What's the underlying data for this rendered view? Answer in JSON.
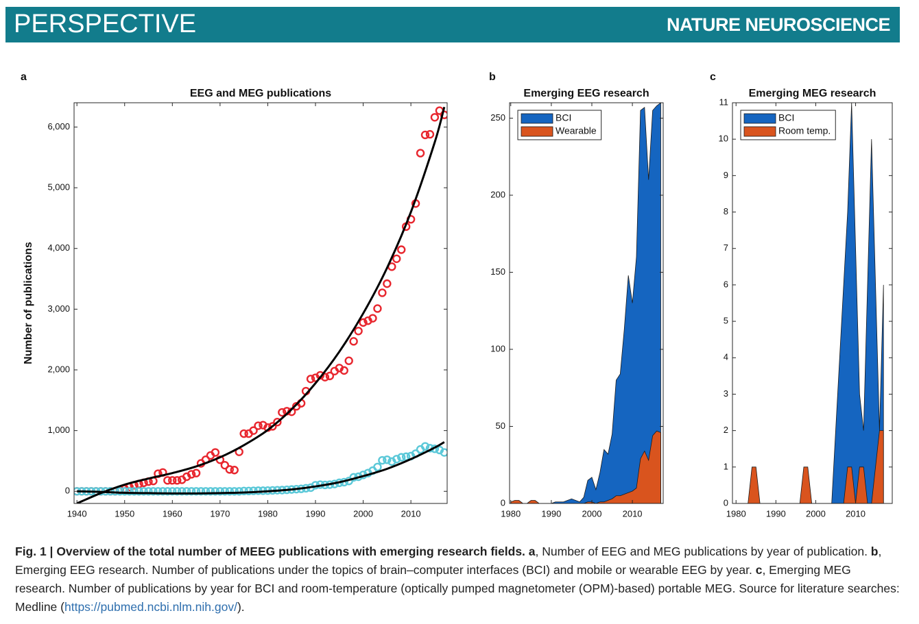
{
  "header": {
    "section": "PERSPECTIVE",
    "journal": "NATURE NEUROSCIENCE",
    "color": "#127c8c"
  },
  "chart_data": [
    {
      "type": "scatter",
      "panel": "a",
      "title": "EEG and MEG publications",
      "ylabel": "Number of publications",
      "x": [
        1940,
        1941,
        1942,
        1943,
        1944,
        1945,
        1946,
        1947,
        1948,
        1949,
        1950,
        1951,
        1952,
        1953,
        1954,
        1955,
        1956,
        1957,
        1958,
        1959,
        1960,
        1961,
        1962,
        1963,
        1964,
        1965,
        1966,
        1967,
        1968,
        1969,
        1970,
        1971,
        1972,
        1973,
        1974,
        1975,
        1976,
        1977,
        1978,
        1979,
        1980,
        1981,
        1982,
        1983,
        1984,
        1985,
        1986,
        1987,
        1988,
        1989,
        1990,
        1991,
        1992,
        1993,
        1994,
        1995,
        1996,
        1997,
        1998,
        1999,
        2000,
        2001,
        2002,
        2003,
        2004,
        2005,
        2006,
        2007,
        2008,
        2009,
        2010,
        2011,
        2012,
        2013,
        2014,
        2015,
        2016,
        2017
      ],
      "series": [
        {
          "color": "#e8262e",
          "values": [
            0,
            0,
            0,
            0,
            0,
            0,
            0,
            0,
            0,
            20,
            40,
            70,
            100,
            120,
            140,
            160,
            170,
            290,
            310,
            180,
            180,
            180,
            190,
            240,
            280,
            300,
            460,
            520,
            590,
            640,
            520,
            430,
            360,
            350,
            650,
            950,
            950,
            1000,
            1080,
            1090,
            1050,
            1070,
            1140,
            1300,
            1320,
            1310,
            1400,
            1450,
            1650,
            1850,
            1870,
            1910,
            1880,
            1900,
            1980,
            2030,
            1990,
            2150,
            2470,
            2640,
            2780,
            2810,
            2850,
            3010,
            3270,
            3420,
            3700,
            3830,
            3980,
            4360,
            4480,
            4740,
            5570,
            5870,
            5880,
            6160,
            6270,
            6200
          ]
        },
        {
          "color": "#5bc8d8",
          "values": [
            0,
            0,
            0,
            0,
            0,
            0,
            0,
            0,
            0,
            0,
            0,
            0,
            0,
            0,
            0,
            0,
            0,
            0,
            0,
            0,
            0,
            0,
            0,
            0,
            0,
            0,
            0,
            0,
            0,
            0,
            0,
            0,
            0,
            0,
            0,
            5,
            5,
            8,
            10,
            10,
            12,
            15,
            18,
            20,
            25,
            30,
            35,
            40,
            50,
            60,
            100,
            110,
            105,
            110,
            120,
            140,
            150,
            170,
            230,
            240,
            270,
            300,
            340,
            400,
            510,
            520,
            490,
            530,
            560,
            570,
            580,
            620,
            690,
            740,
            710,
            700,
            680,
            640
          ]
        }
      ],
      "fits": [
        {
          "color": "#000000",
          "x": [
            1940,
            1945,
            1950,
            1955,
            1960,
            1965,
            1970,
            1975,
            1980,
            1985,
            1990,
            1995,
            2000,
            2005,
            2010,
            2015,
            2017
          ],
          "values": [
            -200,
            -30,
            110,
            210,
            300,
            410,
            560,
            760,
            1010,
            1350,
            1780,
            2300,
            2930,
            3680,
            4600,
            5750,
            6330
          ]
        },
        {
          "color": "#000000",
          "x": [
            1940,
            1945,
            1950,
            1955,
            1960,
            1965,
            1970,
            1975,
            1980,
            1985,
            1990,
            1995,
            2000,
            2005,
            2010,
            2015,
            2017
          ],
          "values": [
            0,
            -10,
            -25,
            -30,
            -35,
            -35,
            -30,
            -20,
            0,
            30,
            80,
            150,
            250,
            370,
            530,
            720,
            810
          ]
        }
      ],
      "xlim": [
        1939.4,
        2017.6
      ],
      "xticks": [
        1940,
        1950,
        1960,
        1970,
        1980,
        1990,
        2000,
        2010
      ],
      "ylim": [
        -200,
        6400
      ],
      "yticks": [
        0,
        {
          "value": 1000,
          "label": "1,000"
        },
        {
          "value": 2000,
          "label": "2,000"
        },
        {
          "value": 3000,
          "label": "3,000"
        },
        {
          "value": 4000,
          "label": "4,000"
        },
        {
          "value": 5000,
          "label": "5,000"
        },
        {
          "value": 6000,
          "label": "6,000"
        }
      ],
      "grid": false
    },
    {
      "type": "area",
      "panel": "b",
      "title": "Emerging EEG research",
      "x": [
        1980,
        1981,
        1982,
        1983,
        1984,
        1985,
        1986,
        1987,
        1988,
        1989,
        1990,
        1991,
        1992,
        1993,
        1994,
        1995,
        1996,
        1997,
        1998,
        1999,
        2000,
        2001,
        2002,
        2003,
        2004,
        2005,
        2006,
        2007,
        2008,
        2009,
        2010,
        2011,
        2012,
        2013,
        2014,
        2015,
        2016,
        2017
      ],
      "series": [
        {
          "name": "BCI",
          "color": "#1565c0",
          "values": [
            0,
            0,
            0,
            0,
            0,
            0,
            0,
            0,
            0,
            0,
            0,
            1,
            1,
            1,
            2,
            3,
            2,
            1,
            4,
            15,
            17,
            9,
            20,
            35,
            32,
            45,
            80,
            84,
            113,
            148,
            130,
            160,
            255,
            257,
            210,
            255,
            258,
            260
          ]
        },
        {
          "name": "Wearable",
          "color": "#d9541e",
          "values": [
            1,
            2,
            2,
            0,
            0,
            2,
            2,
            0,
            0,
            0,
            0,
            0,
            0,
            0,
            0,
            0,
            0,
            0,
            0,
            1,
            1,
            0,
            1,
            1,
            2,
            3,
            5,
            5,
            6,
            7,
            8,
            10,
            29,
            34,
            28,
            44,
            47,
            46
          ]
        }
      ],
      "legend": "upper left",
      "xlim": [
        1979.7,
        2017.6
      ],
      "xticks": [
        1980,
        1990,
        2000,
        2010
      ],
      "ylim": [
        0,
        260
      ],
      "yticks": [
        0,
        50,
        100,
        150,
        200,
        250
      ],
      "grid": false
    },
    {
      "type": "area",
      "panel": "c",
      "title": "Emerging MEG research",
      "x": [
        1980,
        1981,
        1982,
        1983,
        1984,
        1985,
        1986,
        1987,
        1988,
        1989,
        1990,
        1991,
        1992,
        1993,
        1994,
        1995,
        1996,
        1997,
        1998,
        1999,
        2000,
        2001,
        2002,
        2003,
        2004,
        2005,
        2006,
        2007,
        2008,
        2009,
        2010,
        2011,
        2012,
        2013,
        2014,
        2015,
        2016,
        2017
      ],
      "series": [
        {
          "name": "BCI",
          "color": "#1565c0",
          "values": [
            0,
            0,
            0,
            0,
            0,
            0,
            0,
            0,
            0,
            0,
            0,
            0,
            0,
            0,
            0,
            0,
            0,
            0,
            0,
            0,
            0,
            0,
            0,
            0,
            0,
            2,
            4,
            6,
            8,
            11,
            7,
            3,
            2,
            6,
            10,
            6,
            2,
            6
          ]
        },
        {
          "name": "Room temp.",
          "color": "#d9541e",
          "values": [
            0,
            0,
            0,
            0,
            1,
            1,
            0,
            0,
            0,
            0,
            0,
            0,
            0,
            0,
            0,
            0,
            0,
            1,
            1,
            0,
            0,
            0,
            0,
            0,
            0,
            0,
            0,
            0,
            1,
            1,
            0,
            1,
            1,
            0,
            0,
            1,
            2,
            2
          ]
        }
      ],
      "legend": "upper left",
      "xlim": [
        1979.1,
        2019.2
      ],
      "xticks": [
        1980,
        1990,
        2000,
        2010
      ],
      "ylim": [
        0,
        11
      ],
      "yticks": [
        0,
        1,
        2,
        3,
        4,
        5,
        6,
        7,
        8,
        9,
        10,
        11
      ],
      "grid": false
    }
  ],
  "caption": {
    "segments": [
      {
        "style": "bold",
        "text": "Fig. 1 | Overview of the total number of MEEG publications with emerging research fields. a"
      },
      {
        "style": "normal",
        "text": ", Number of EEG and MEG publications by year of publication. "
      },
      {
        "style": "bold",
        "text": "b"
      },
      {
        "style": "normal",
        "text": ", Emerging EEG research. Number of publications under the topics of brain–computer interfaces (BCI) and mobile or wearable EEG by year. "
      },
      {
        "style": "bold",
        "text": "c"
      },
      {
        "style": "normal",
        "text": ", Emerging MEG research. Number of publications by year for BCI and room-temperature (optically pumped magnetometer (OPM)-based) portable MEG. Source for literature searches: Medline ("
      },
      {
        "style": "link",
        "text": "https://pubmed.ncbi.nlm.nih.gov/"
      },
      {
        "style": "normal",
        "text": ")."
      }
    ]
  }
}
